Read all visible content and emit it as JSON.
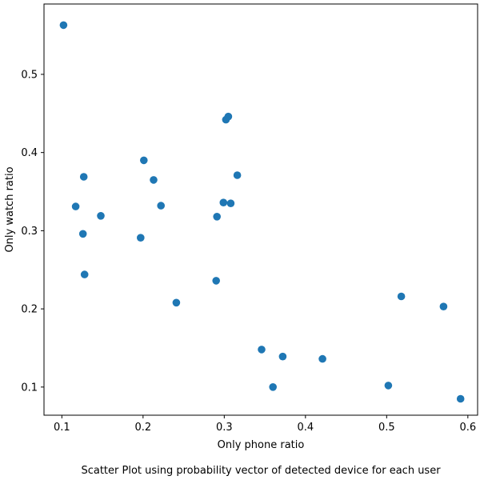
{
  "chart_data": {
    "type": "scatter",
    "xlabel": "Only phone ratio",
    "ylabel": "Only watch ratio",
    "caption": "Scatter Plot using probability vector of detected device for each user",
    "xlim": [
      0.078,
      0.612
    ],
    "ylim": [
      0.064,
      0.59
    ],
    "xticks": [
      0.1,
      0.2,
      0.3,
      0.4,
      0.5,
      0.6
    ],
    "xtick_labels": [
      "0.1",
      "0.2",
      "0.3",
      "0.4",
      "0.5",
      "0.6"
    ],
    "yticks": [
      0.1,
      0.2,
      0.3,
      0.4,
      0.5
    ],
    "ytick_labels": [
      "0.1",
      "0.2",
      "0.3",
      "0.4",
      "0.5"
    ],
    "marker_color": "#1f77b4",
    "grid": false,
    "points": [
      {
        "x": 0.102,
        "y": 0.563
      },
      {
        "x": 0.117,
        "y": 0.331
      },
      {
        "x": 0.127,
        "y": 0.369
      },
      {
        "x": 0.126,
        "y": 0.296
      },
      {
        "x": 0.128,
        "y": 0.244
      },
      {
        "x": 0.148,
        "y": 0.319
      },
      {
        "x": 0.197,
        "y": 0.291
      },
      {
        "x": 0.201,
        "y": 0.39
      },
      {
        "x": 0.213,
        "y": 0.365
      },
      {
        "x": 0.222,
        "y": 0.332
      },
      {
        "x": 0.241,
        "y": 0.208
      },
      {
        "x": 0.29,
        "y": 0.236
      },
      {
        "x": 0.291,
        "y": 0.318
      },
      {
        "x": 0.299,
        "y": 0.336
      },
      {
        "x": 0.302,
        "y": 0.442
      },
      {
        "x": 0.305,
        "y": 0.446
      },
      {
        "x": 0.308,
        "y": 0.335
      },
      {
        "x": 0.316,
        "y": 0.371
      },
      {
        "x": 0.346,
        "y": 0.148
      },
      {
        "x": 0.36,
        "y": 0.1
      },
      {
        "x": 0.372,
        "y": 0.139
      },
      {
        "x": 0.421,
        "y": 0.136
      },
      {
        "x": 0.502,
        "y": 0.102
      },
      {
        "x": 0.518,
        "y": 0.216
      },
      {
        "x": 0.57,
        "y": 0.203
      },
      {
        "x": 0.591,
        "y": 0.085
      }
    ]
  }
}
